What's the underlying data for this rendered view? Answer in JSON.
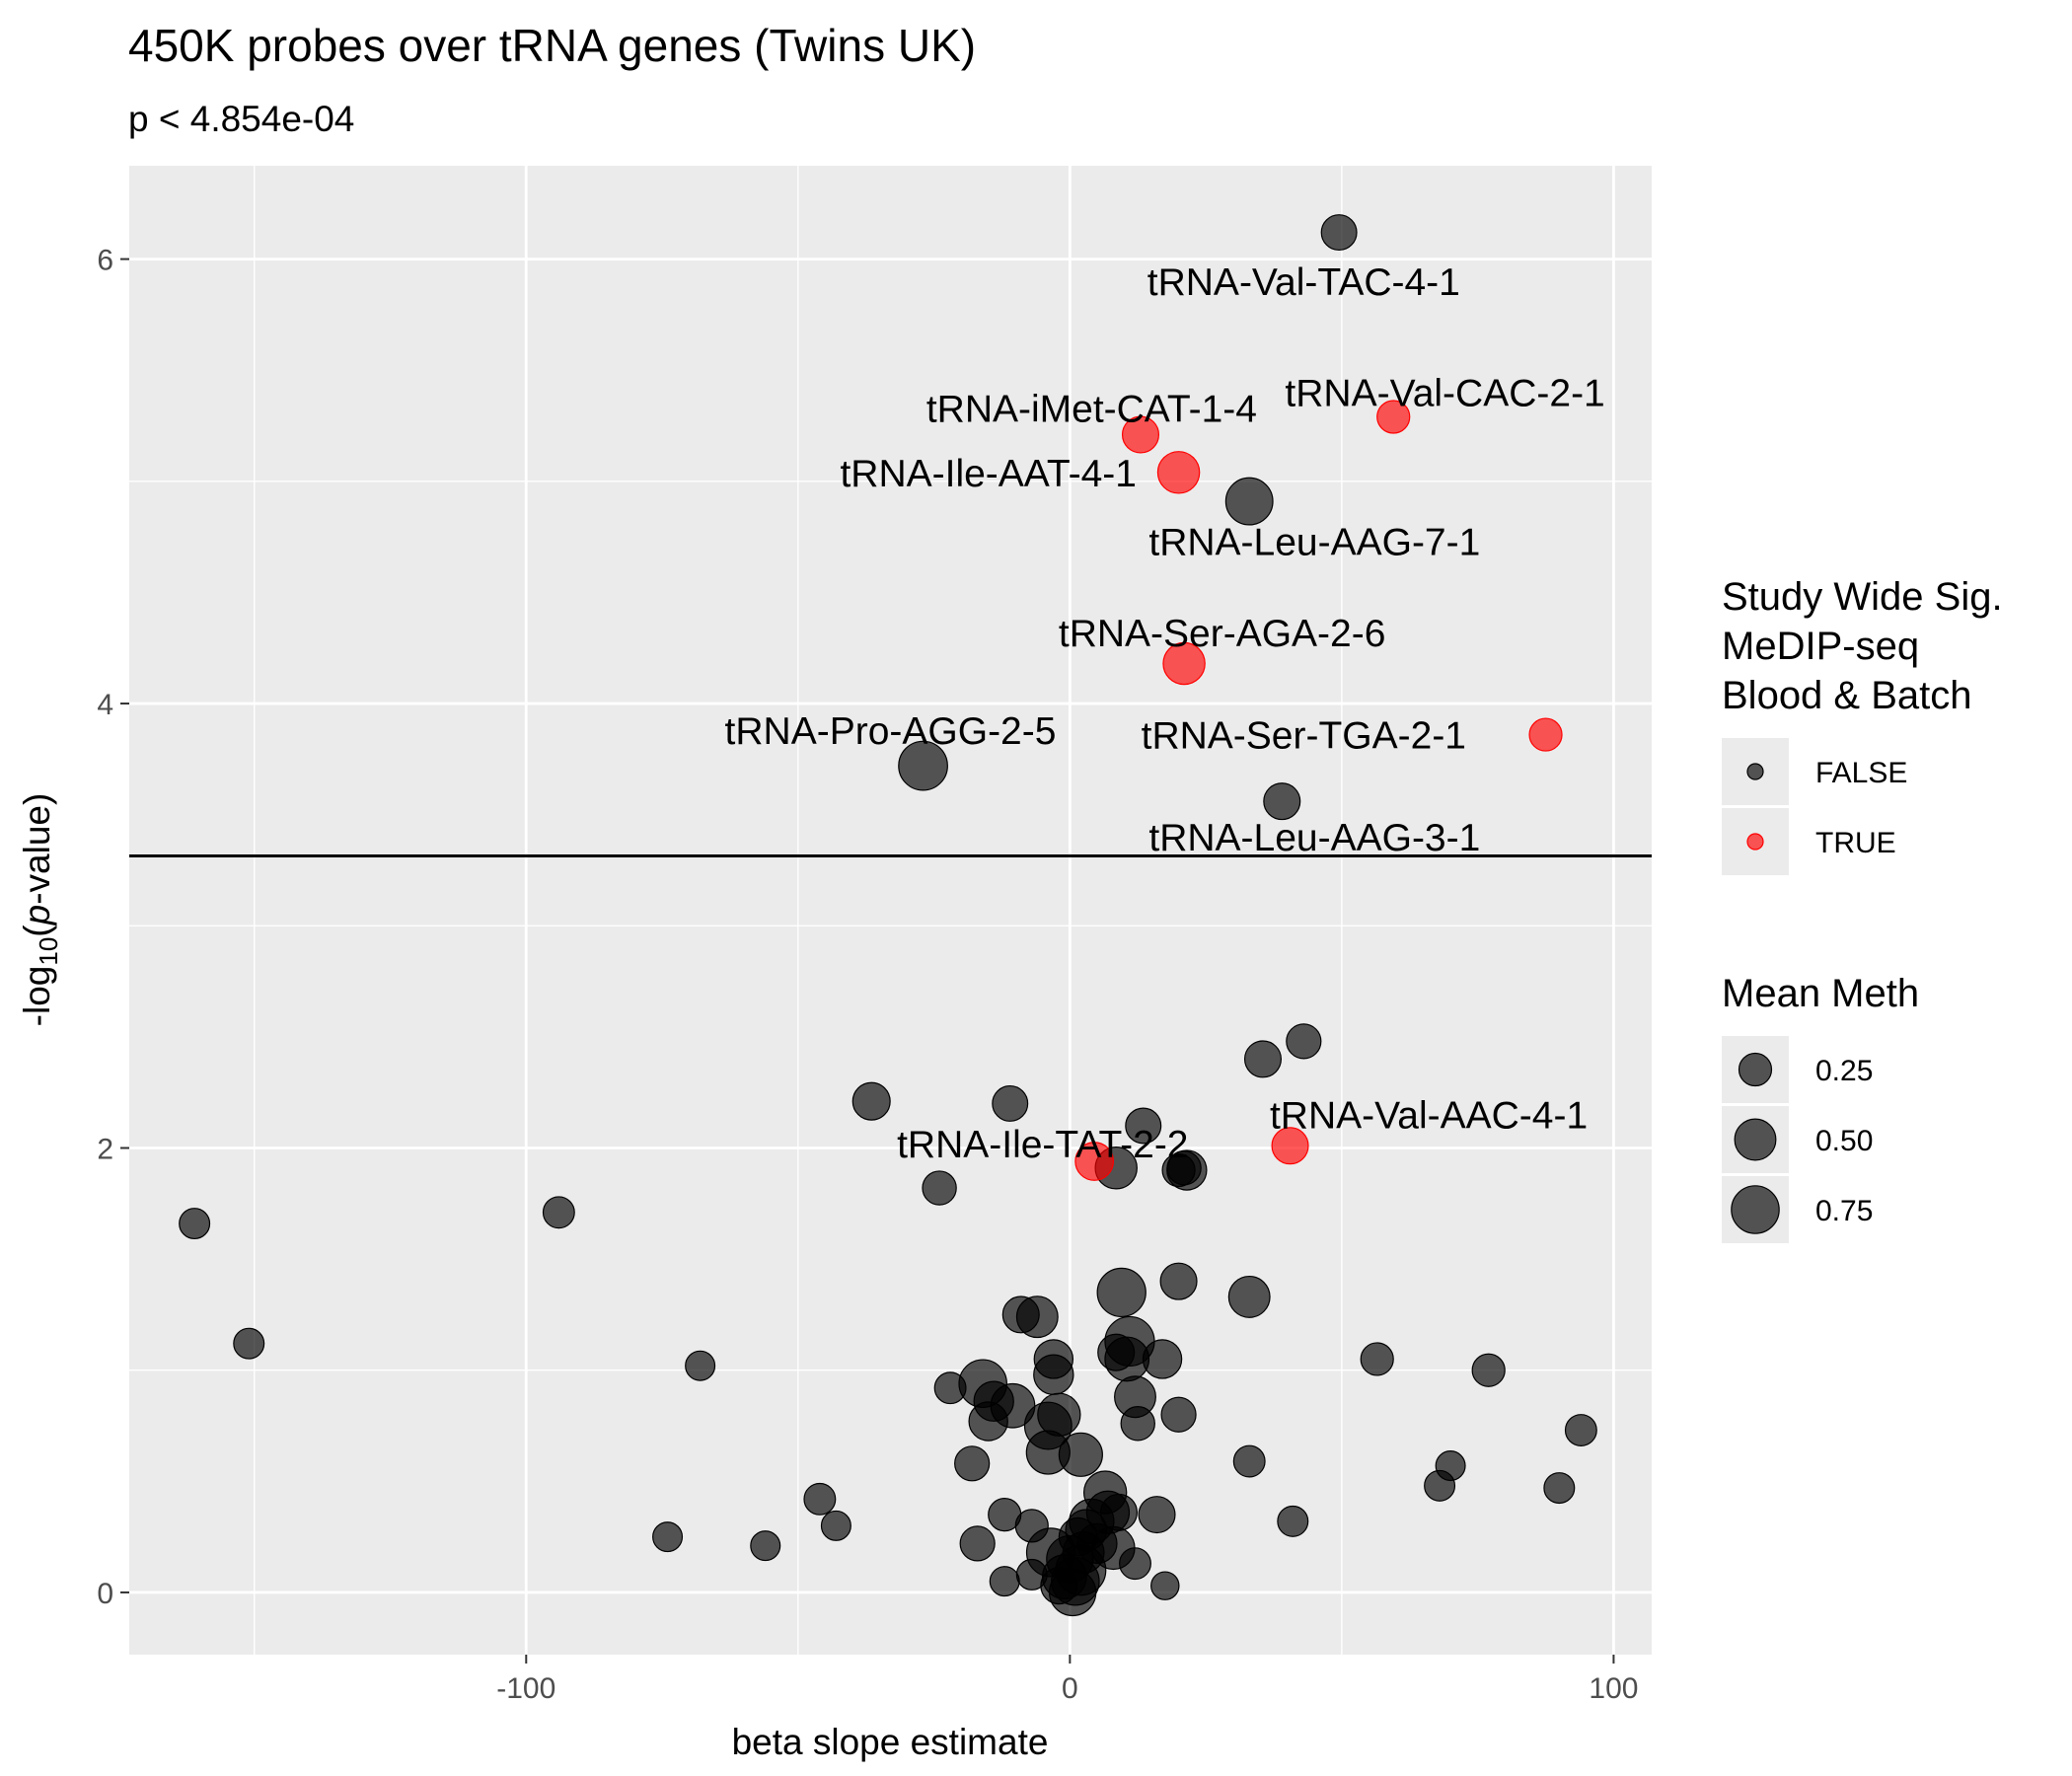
{
  "chart_data": {
    "type": "scatter",
    "title": "450K probes over tRNA genes (Twins UK)",
    "subtitle": "p < 4.854e-04",
    "xlabel": "beta slope estimate",
    "ylabel_prefix": "-log",
    "ylabel_sub": "10",
    "ylabel_italic": "p",
    "ylabel_suffix": "-value)",
    "xlim": [
      -173,
      107
    ],
    "ylim": [
      -0.28,
      6.42
    ],
    "xticks": [
      -100,
      0,
      100
    ],
    "xtick_labels": [
      "-100",
      "0",
      "100"
    ],
    "yticks": [
      0,
      2,
      4,
      6
    ],
    "ytick_labels": [
      "0",
      "2",
      "4",
      "6"
    ],
    "grid": true,
    "hline": 3.314,
    "colors": {
      "FALSE": "#000000",
      "TRUE": "#ff0000",
      "panel": "#ebebeb",
      "grid": "#ffffff"
    },
    "point_alpha": 0.65,
    "legend_position": "right",
    "legend": {
      "color_title": [
        "Study Wide Sig.",
        "MeDIP-seq",
        "Blood & Batch"
      ],
      "color_entries": [
        "FALSE",
        "TRUE"
      ],
      "size_title": "Mean Meth",
      "size_values": [
        0.25,
        0.5,
        0.75
      ],
      "size_labels": [
        "0.25",
        "0.50",
        "0.75"
      ]
    },
    "labeled_points": [
      {
        "label": "tRNA-Val-TAC-4-1",
        "x": 49.5,
        "y": 6.12,
        "meth": 0.32,
        "sig": false,
        "lx": 43,
        "ly": 5.9
      },
      {
        "label": "tRNA-Val-CAC-2-1",
        "x": 59.5,
        "y": 5.29,
        "meth": 0.25,
        "sig": true,
        "lx": 69,
        "ly": 5.4
      },
      {
        "label": "tRNA-iMet-CAT-1-4",
        "x": 13,
        "y": 5.21,
        "meth": 0.35,
        "sig": true,
        "lx": 4,
        "ly": 5.33
      },
      {
        "label": "tRNA-Ile-AAT-4-1",
        "x": 20,
        "y": 5.04,
        "meth": 0.52,
        "sig": true,
        "lx": -15,
        "ly": 5.04
      },
      {
        "label": "tRNA-Leu-AAG-7-1",
        "x": 33,
        "y": 4.91,
        "meth": 0.72,
        "sig": false,
        "lx": 45,
        "ly": 4.73
      },
      {
        "label": "tRNA-Ser-AGA-2-6",
        "x": 21,
        "y": 4.18,
        "meth": 0.52,
        "sig": true,
        "lx": 28,
        "ly": 4.32
      },
      {
        "label": "tRNA-Ser-TGA-2-1",
        "x": 87.5,
        "y": 3.86,
        "meth": 0.25,
        "sig": true,
        "lx": 43,
        "ly": 3.86
      },
      {
        "label": "tRNA-Pro-AGG-2-5",
        "x": -27,
        "y": 3.72,
        "meth": 0.8,
        "sig": false,
        "lx": -33,
        "ly": 3.88
      },
      {
        "label": "tRNA-Leu-AAG-3-1",
        "x": 39,
        "y": 3.56,
        "meth": 0.35,
        "sig": false,
        "lx": 45,
        "ly": 3.4
      },
      {
        "label": "tRNA-Val-AAC-4-1",
        "x": 40.5,
        "y": 2.01,
        "meth": 0.35,
        "sig": true,
        "lx": 66,
        "ly": 2.15
      },
      {
        "label": "tRNA-Ile-TAT-2-2",
        "x": 4.5,
        "y": 1.94,
        "meth": 0.4,
        "sig": true,
        "lx": -5,
        "ly": 2.02
      }
    ],
    "points": [
      [
        -161,
        1.66,
        0.2
      ],
      [
        -151,
        1.12,
        0.2
      ],
      [
        -94,
        1.71,
        0.22
      ],
      [
        -68,
        1.02,
        0.18
      ],
      [
        -74,
        0.25,
        0.18
      ],
      [
        -56,
        0.21,
        0.18
      ],
      [
        -43,
        0.3,
        0.18
      ],
      [
        -46,
        0.42,
        0.22
      ],
      [
        -36.5,
        2.21,
        0.38
      ],
      [
        -24,
        1.82,
        0.28
      ],
      [
        -11,
        2.2,
        0.32
      ],
      [
        13.5,
        2.1,
        0.32
      ],
      [
        8.5,
        1.91,
        0.52
      ],
      [
        21.5,
        1.9,
        0.45
      ],
      [
        21,
        1.91,
        0.28
      ],
      [
        20,
        1.9,
        0.25
      ],
      [
        35.5,
        2.4,
        0.35
      ],
      [
        43,
        2.48,
        0.3
      ],
      [
        56.5,
        1.05,
        0.25
      ],
      [
        77,
        1.0,
        0.25
      ],
      [
        94,
        0.73,
        0.22
      ],
      [
        70,
        0.57,
        0.18
      ],
      [
        90,
        0.47,
        0.2
      ],
      [
        68,
        0.48,
        0.2
      ],
      [
        33,
        0.59,
        0.22
      ],
      [
        41,
        0.32,
        0.2
      ],
      [
        20,
        1.4,
        0.35
      ],
      [
        33,
        1.33,
        0.5
      ],
      [
        9.5,
        1.35,
        0.78
      ],
      [
        11,
        1.13,
        0.82
      ],
      [
        10.5,
        1.05,
        0.6
      ],
      [
        17,
        1.05,
        0.42
      ],
      [
        8.5,
        1.08,
        0.35
      ],
      [
        12,
        0.88,
        0.5
      ],
      [
        20,
        0.8,
        0.3
      ],
      [
        12.5,
        0.76,
        0.28
      ],
      [
        -3,
        1.05,
        0.42
      ],
      [
        -3,
        0.98,
        0.45
      ],
      [
        -6,
        1.24,
        0.5
      ],
      [
        -9,
        1.25,
        0.35
      ],
      [
        -16,
        0.94,
        0.75
      ],
      [
        -14,
        0.86,
        0.45
      ],
      [
        -15,
        0.77,
        0.42
      ],
      [
        -10.5,
        0.84,
        0.6
      ],
      [
        -22,
        0.92,
        0.22
      ],
      [
        -2,
        0.8,
        0.55
      ],
      [
        -4,
        0.75,
        0.72
      ],
      [
        -4,
        0.63,
        0.58
      ],
      [
        2,
        0.62,
        0.58
      ],
      [
        -18,
        0.58,
        0.3
      ],
      [
        6.5,
        0.45,
        0.55
      ],
      [
        16,
        0.35,
        0.35
      ],
      [
        9,
        0.36,
        0.35
      ],
      [
        7,
        0.36,
        0.55
      ],
      [
        4,
        0.32,
        0.62
      ],
      [
        -12,
        0.35,
        0.25
      ],
      [
        -7,
        0.3,
        0.25
      ],
      [
        -17,
        0.22,
        0.3
      ],
      [
        -3.5,
        0.18,
        0.78
      ],
      [
        8,
        0.2,
        0.55
      ],
      [
        12,
        0.13,
        0.22
      ],
      [
        -7,
        0.08,
        0.2
      ],
      [
        -12,
        0.05,
        0.18
      ],
      [
        17.5,
        0.03,
        0.15
      ],
      [
        0,
        0.15,
        0.7
      ],
      [
        2,
        0.1,
        0.85
      ],
      [
        1,
        0.05,
        0.75
      ],
      [
        -1,
        0.07,
        0.6
      ],
      [
        0.5,
        0.0,
        0.7
      ],
      [
        3,
        0.28,
        0.5
      ],
      [
        5,
        0.22,
        0.45
      ],
      [
        1.5,
        0.25,
        0.4
      ],
      [
        -2,
        0.03,
        0.35
      ],
      [
        2.5,
        0.18,
        0.5
      ]
    ]
  }
}
